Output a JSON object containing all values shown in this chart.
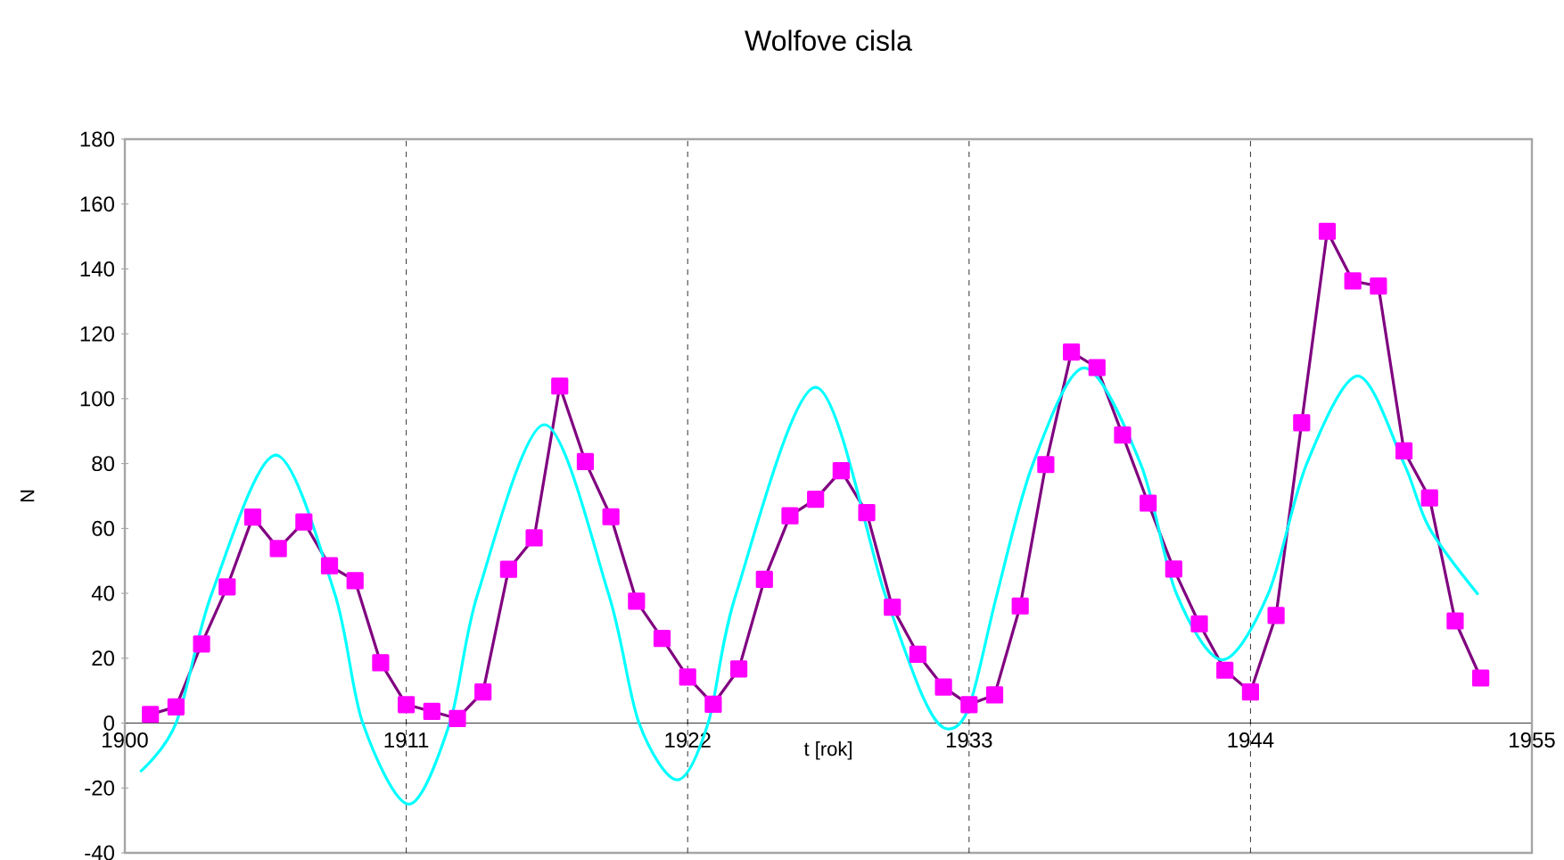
{
  "chart_data": {
    "type": "line",
    "title": "Wolfove cisla",
    "xlabel": "t [rok]",
    "ylabel": "N",
    "xlim": [
      1900,
      1955
    ],
    "xticks": [
      1900,
      1911,
      1922,
      1933,
      1944,
      1955
    ],
    "ylim": [
      -40,
      180
    ],
    "yticks": [
      -40,
      -20,
      0,
      20,
      40,
      60,
      80,
      100,
      120,
      140,
      160,
      180
    ],
    "grid": false,
    "ref_lines": [
      {
        "axis": "x",
        "value": 1911,
        "line_style": "dashed",
        "color": "#000000"
      },
      {
        "axis": "x",
        "value": 1922,
        "line_style": "dashed",
        "color": "#000000"
      },
      {
        "axis": "x",
        "value": 1933,
        "line_style": "dashed",
        "color": "#000000"
      },
      {
        "axis": "x",
        "value": 1944,
        "line_style": "dashed",
        "color": "#000000"
      }
    ],
    "series": [
      {
        "marker": "square",
        "line_style": "solid",
        "color": "#ff00ff",
        "x": [
          1901,
          1902,
          1903,
          1904,
          1905,
          1906,
          1907,
          1908,
          1909,
          1910,
          1911,
          1912,
          1913,
          1914,
          1915,
          1916,
          1917,
          1918,
          1919,
          1920,
          1921,
          1922,
          1923,
          1924,
          1925,
          1926,
          1927,
          1928,
          1929,
          1930,
          1931,
          1932,
          1933,
          1934,
          1935,
          1936,
          1937,
          1938,
          1939,
          1940,
          1941,
          1942,
          1943,
          1944,
          1945,
          1946,
          1947,
          1948,
          1949,
          1950,
          1951,
          1952,
          1953
        ],
        "values": [
          2.7,
          5.0,
          24.4,
          42.0,
          63.5,
          53.8,
          62.0,
          48.5,
          43.9,
          18.6,
          5.7,
          3.6,
          1.4,
          9.6,
          47.4,
          57.1,
          103.9,
          80.6,
          63.6,
          37.6,
          26.1,
          14.2,
          5.8,
          16.7,
          44.3,
          63.9,
          69.0,
          77.8,
          64.9,
          35.7,
          21.2,
          11.1,
          5.7,
          8.7,
          36.1,
          79.7,
          114.4,
          109.6,
          88.8,
          67.8,
          47.5,
          30.6,
          16.3,
          9.6,
          33.2,
          92.6,
          151.6,
          136.3,
          134.7,
          83.9,
          69.4,
          31.5,
          13.9
        ]
      },
      {
        "marker": "none",
        "line_style": "solid",
        "color": "#00ffff",
        "x": [
          1900.6,
          1902.0,
          1903.4,
          1905.9,
          1908.2,
          1909.3,
          1911.1,
          1912.7,
          1913.8,
          1916.4,
          1918.9,
          1920.1,
          1921.6,
          1922.8,
          1923.9,
          1927.0,
          1929.7,
          1931.2,
          1932.1,
          1933.0,
          1934.1,
          1935.5,
          1937.5,
          1939.7,
          1941.1,
          1942.9,
          1944.7,
          1946.2,
          1948.2,
          1950.0,
          1951.0,
          1952.9
        ],
        "values": [
          -15,
          0,
          40,
          82.6,
          40,
          0,
          -25,
          0,
          40,
          92,
          40,
          0,
          -17.5,
          0,
          40,
          103.5,
          40,
          8,
          -1.7,
          5,
          40,
          80,
          109.5,
          80,
          40,
          19.5,
          40,
          80,
          107,
          80,
          60,
          39.6
        ]
      }
    ]
  }
}
